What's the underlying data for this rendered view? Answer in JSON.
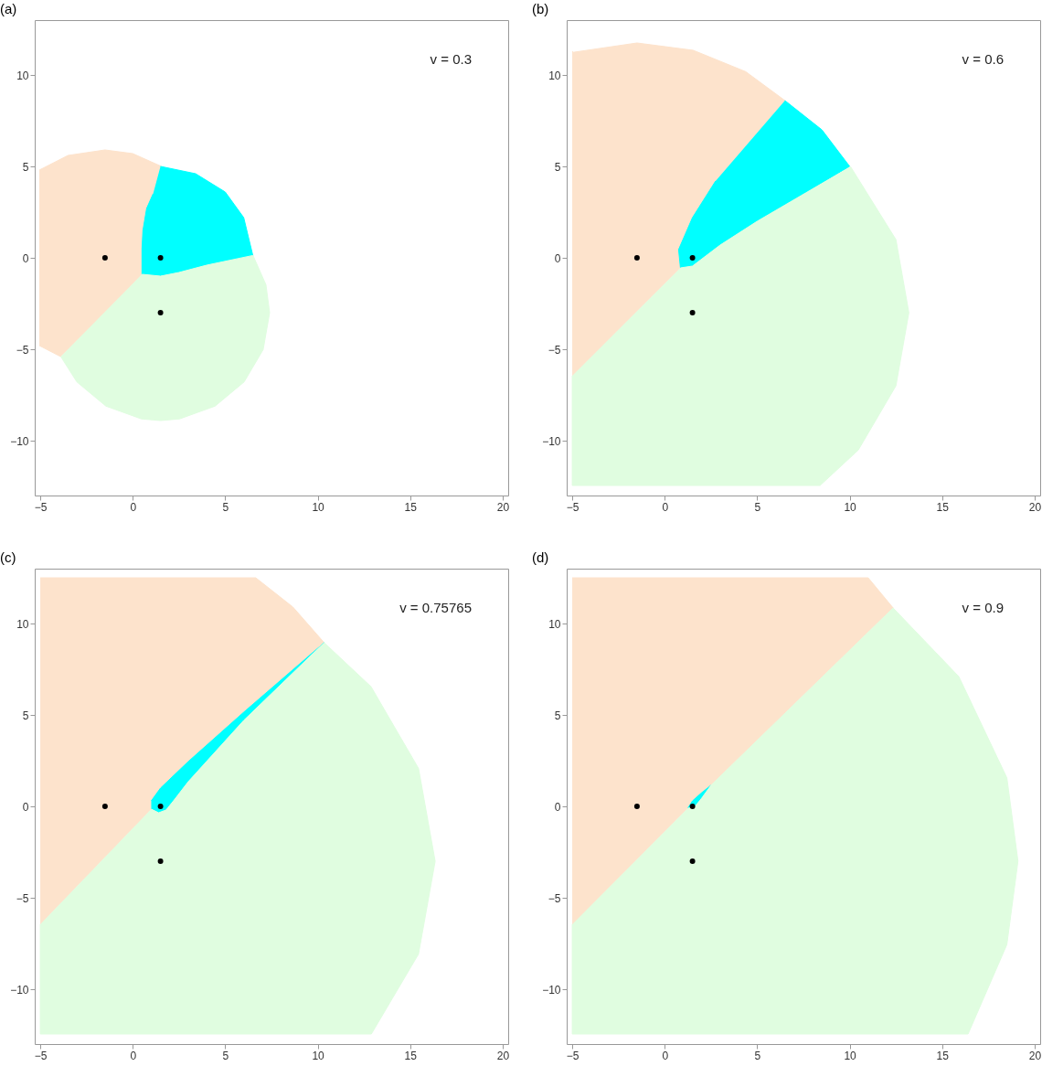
{
  "chart_data": [
    {
      "type": "area",
      "title": "(a)",
      "annotations": [
        "v = 0.3"
      ],
      "xlim": [
        -5.3,
        20.3
      ],
      "ylim": [
        -13,
        13
      ],
      "xticks": [
        -5,
        0,
        5,
        10,
        15,
        20
      ],
      "yticks": [
        -10,
        -5,
        0,
        5,
        10
      ],
      "grid": false,
      "series": [
        {
          "type": "area",
          "color": "#fde3cc",
          "x": [
            -5.05,
            -3.5,
            -1.5,
            0,
            1.55,
            1.1,
            0.75,
            0.55,
            0.5,
            0.5,
            -1.7,
            -3.9,
            -5.05
          ],
          "values": [
            4.8,
            5.6,
            5.9,
            5.7,
            5.0,
            3.5,
            2.7,
            1.5,
            0.5,
            -0.9,
            -3.2,
            -5.4,
            -4.8
          ]
        },
        {
          "type": "area",
          "color": "#00ffff",
          "x": [
            1.5,
            3.4,
            5.0,
            6.0,
            6.5,
            4,
            2.5,
            1.5,
            0.5,
            0.5,
            0.55,
            0.75,
            1.1
          ],
          "values": [
            5.0,
            4.6,
            3.6,
            2.2,
            0.1,
            -0.4,
            -0.8,
            -1.0,
            -0.9,
            0.5,
            1.5,
            2.7,
            3.5
          ]
        },
        {
          "type": "area",
          "color": "#e0fde0",
          "x": [
            0.5,
            1.5,
            2.5,
            4,
            6.5,
            7.2,
            7.4,
            7.05,
            6.02,
            4.45,
            2.53,
            1.5,
            0.47,
            -1.45,
            -3.02,
            -3.89
          ],
          "values": [
            -0.9,
            -1.0,
            -0.8,
            -0.4,
            0.13,
            -1.47,
            -3,
            -5.02,
            -6.79,
            -8.11,
            -8.81,
            -8.9,
            -8.81,
            -8.11,
            -6.79,
            -5.4
          ]
        },
        {
          "type": "scatter",
          "color": "#000000",
          "x": [
            -1.5,
            1.5,
            1.5
          ],
          "values": [
            0,
            0,
            -3
          ]
        }
      ]
    },
    {
      "type": "area",
      "title": "(b)",
      "annotations": [
        "v = 0.6"
      ],
      "xlim": [
        -5.3,
        20.3
      ],
      "ylim": [
        -13,
        13
      ],
      "xticks": [
        -5,
        0,
        5,
        10,
        15,
        20
      ],
      "yticks": [
        -10,
        -5,
        0,
        5,
        10
      ],
      "grid": false,
      "series": [
        {
          "type": "area",
          "color": "#fde3cc",
          "x": [
            -5,
            -4.94,
            -1.5,
            1.54,
            4.38,
            6.5,
            2.75,
            1.5,
            0.75,
            0.85,
            -5
          ],
          "values": [
            11.3,
            11.24,
            11.75,
            11.35,
            10.18,
            8.6,
            4.2,
            2.2,
            0.45,
            -0.55,
            -6.45
          ]
        },
        {
          "type": "area",
          "color": "#00ffff",
          "x": [
            6.5,
            8.5,
            10.0,
            5,
            3,
            1.5,
            0.85,
            0.75,
            1.5,
            2.75
          ],
          "values": [
            8.6,
            7.0,
            5.0,
            2.0,
            0.7,
            -0.45,
            -0.55,
            0.45,
            2.2,
            4.2
          ]
        },
        {
          "type": "area",
          "color": "#e0fde0",
          "x": [
            0.85,
            1.5,
            3,
            5,
            10.05,
            12.5,
            13.2,
            12.5,
            10.46,
            8.4,
            -5,
            -5
          ],
          "values": [
            -0.55,
            -0.45,
            0.7,
            2.0,
            4.98,
            1.0,
            -3,
            -7.0,
            -10.52,
            -12.45,
            -12.45,
            -6.45
          ]
        },
        {
          "type": "scatter",
          "color": "#000000",
          "x": [
            -1.5,
            1.5,
            1.5
          ],
          "values": [
            0,
            0,
            -3
          ]
        }
      ]
    },
    {
      "type": "area",
      "title": "(c)",
      "annotations": [
        "v = 0.75765"
      ],
      "xlim": [
        -5.3,
        20.3
      ],
      "ylim": [
        -13,
        13
      ],
      "xticks": [
        -5,
        0,
        5,
        10,
        15,
        20
      ],
      "yticks": [
        -10,
        -5,
        0,
        5,
        10
      ],
      "grid": false,
      "series": [
        {
          "type": "area",
          "color": "#fde3cc",
          "x": [
            -5,
            6.65,
            8.66,
            10.35,
            6,
            3,
            1.5,
            1.0,
            1.0,
            -5
          ],
          "values": [
            12.5,
            12.5,
            10.9,
            8.95,
            5.15,
            2.45,
            1.0,
            0.3,
            -0.15,
            -6.45
          ]
        },
        {
          "type": "area",
          "color": "#00ffff",
          "x": [
            1.0,
            1.5,
            3,
            6,
            10.35,
            6,
            3,
            2.2,
            1.8,
            1.4,
            1.0
          ],
          "values": [
            0.3,
            1.0,
            2.45,
            5.15,
            8.95,
            4.7,
            1.35,
            0.3,
            -0.2,
            -0.35,
            -0.15
          ]
        },
        {
          "type": "area",
          "color": "#e0fde0",
          "x": [
            1.0,
            1.4,
            1.8,
            2.2,
            3,
            6,
            10.35,
            12.88,
            15.45,
            16.35,
            15.45,
            12.9,
            -5,
            -5
          ],
          "values": [
            -0.15,
            -0.35,
            -0.2,
            0.3,
            1.35,
            4.7,
            8.95,
            6.55,
            2.08,
            -3,
            -8.08,
            -12.45,
            -12.45,
            -6.45
          ]
        },
        {
          "type": "scatter",
          "color": "#000000",
          "x": [
            -1.5,
            1.5,
            1.5
          ],
          "values": [
            0,
            0,
            -3
          ]
        }
      ]
    },
    {
      "type": "area",
      "title": "(d)",
      "annotations": [
        "v = 0.9"
      ],
      "xlim": [
        -5.3,
        20.3
      ],
      "ylim": [
        -13,
        13
      ],
      "xticks": [
        -5,
        0,
        5,
        10,
        15,
        20
      ],
      "yticks": [
        -10,
        -5,
        0,
        5,
        10
      ],
      "grid": false,
      "series": [
        {
          "type": "area",
          "color": "#fde3cc",
          "x": [
            -5,
            11,
            12.35,
            2.5,
            2.0,
            1.5,
            1.25,
            -5
          ],
          "values": [
            12.5,
            12.5,
            10.85,
            1.15,
            0.75,
            0.3,
            -0.1,
            -6.45
          ]
        },
        {
          "type": "area",
          "color": "#00ffff",
          "x": [
            1.25,
            1.5,
            2.0,
            2.5,
            2.0,
            1.6
          ],
          "values": [
            -0.1,
            0.3,
            0.75,
            1.15,
            0.45,
            -0.05
          ]
        },
        {
          "type": "area",
          "color": "#e0fde0",
          "x": [
            1.25,
            1.6,
            2.0,
            2.5,
            12.35,
            15.9,
            18.5,
            19.1,
            18.5,
            16.4,
            -5,
            -5
          ],
          "values": [
            -0.1,
            -0.05,
            0.45,
            1.15,
            10.85,
            7.1,
            1.56,
            -3,
            -7.56,
            -12.45,
            -12.45,
            -6.45
          ]
        },
        {
          "type": "scatter",
          "color": "#000000",
          "x": [
            -1.5,
            1.5,
            1.5
          ],
          "values": [
            0,
            0,
            -3
          ]
        }
      ]
    }
  ]
}
